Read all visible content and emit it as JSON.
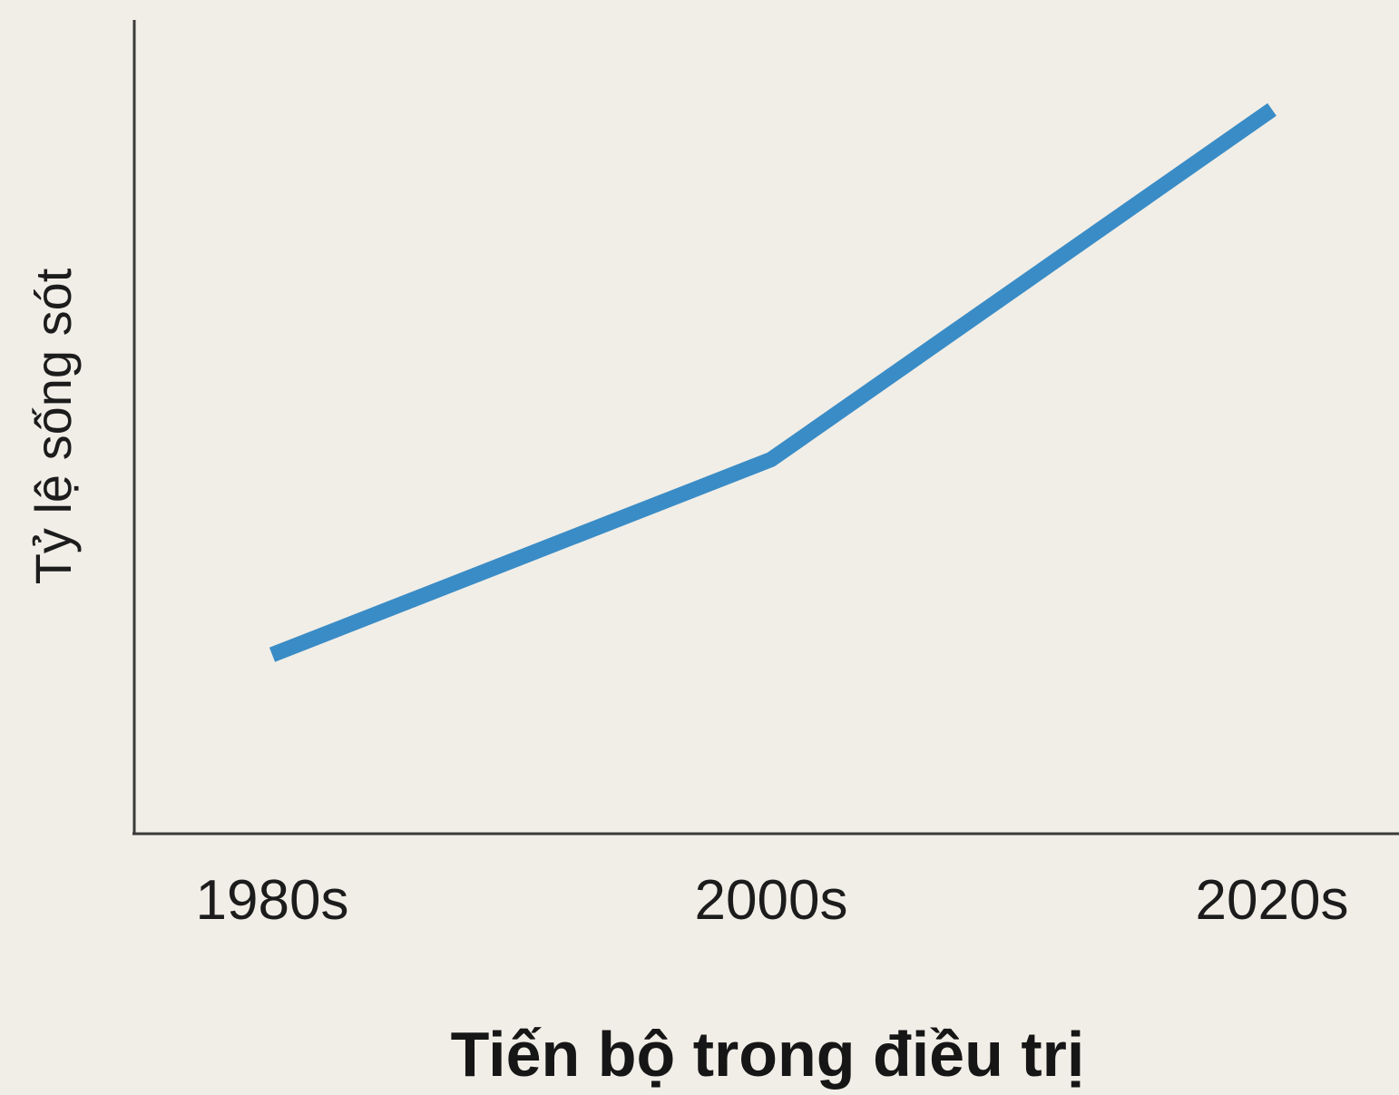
{
  "chart_data": {
    "type": "line",
    "title": "",
    "xlabel": "Tiến bộ trong điều trị",
    "ylabel": "Tỷ lệ sống sót",
    "categories": [
      "1980s",
      "2000s",
      "2020s"
    ],
    "series": [
      {
        "values": [
          22,
          46,
          89
        ],
        "color": "#3a8cc6"
      }
    ],
    "ylim": [
      0,
      100
    ],
    "grid": false,
    "legend": "none"
  },
  "colors": {
    "background": "#f1eee7",
    "axis": "#3a3a3a",
    "text": "#1c1c1c"
  }
}
